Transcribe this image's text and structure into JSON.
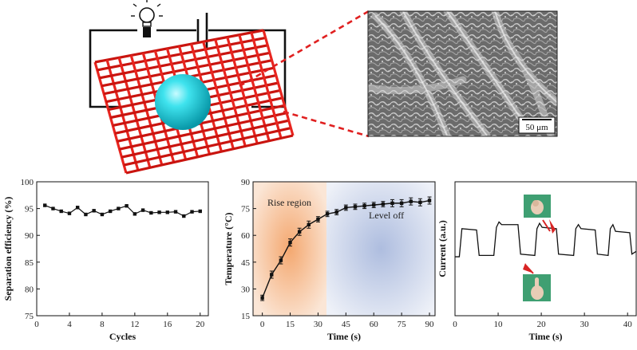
{
  "schematic": {
    "sem_label": "SEM micrograph of fibrous mesh surface",
    "scale_bar": "50 μm",
    "mesh_label": "red woven mesh with cyan droplet in circuit with bulb and battery"
  },
  "chart_data": [
    {
      "type": "line",
      "xlabel": "Cycles",
      "ylabel": "Separation efficiency (%)",
      "xlim": [
        0,
        21
      ],
      "ylim": [
        75,
        100
      ],
      "xticks": [
        "0",
        "4",
        "8",
        "12",
        "16",
        "20"
      ],
      "yticks": [
        "75",
        "80",
        "85",
        "90",
        "95",
        "100"
      ],
      "series": [
        {
          "name": "efficiency",
          "x": [
            1,
            2,
            3,
            4,
            5,
            6,
            7,
            8,
            9,
            10,
            11,
            12,
            13,
            14,
            15,
            16,
            17,
            18,
            19,
            20
          ],
          "y": [
            95.6,
            95.0,
            94.5,
            94.1,
            95.2,
            93.9,
            94.6,
            93.9,
            94.5,
            95.0,
            95.5,
            94.0,
            94.7,
            94.2,
            94.3,
            94.3,
            94.4,
            93.6,
            94.4,
            94.5
          ]
        }
      ]
    },
    {
      "type": "line",
      "xlabel": "Time (s)",
      "ylabel": "Temperature (°C)",
      "xlim": [
        -5,
        93
      ],
      "ylim": [
        15,
        90
      ],
      "xticks": [
        "0",
        "15",
        "30",
        "45",
        "60",
        "75",
        "90"
      ],
      "yticks": [
        "15",
        "30",
        "45",
        "60",
        "75",
        "90"
      ],
      "regions": [
        {
          "label": "Rise region",
          "x": [
            -5,
            35
          ],
          "color": "#f3b48a"
        },
        {
          "label": "Level off",
          "x": [
            35,
            93
          ],
          "color": "#b9c6e2"
        }
      ],
      "series": [
        {
          "name": "temperature",
          "x": [
            0,
            5,
            10,
            15,
            20,
            25,
            30,
            35,
            40,
            45,
            50,
            55,
            60,
            65,
            70,
            75,
            80,
            85,
            90
          ],
          "y": [
            25,
            38,
            46,
            56,
            62,
            66,
            69,
            72,
            73,
            75.5,
            76,
            76.5,
            77,
            77.5,
            78,
            78,
            79,
            78.5,
            79.5
          ],
          "err": [
            1.5,
            2,
            2,
            2,
            2,
            2,
            1.5,
            1.5,
            1.5,
            1.5,
            1.5,
            1.5,
            1.5,
            1.5,
            2,
            2,
            2,
            2,
            2
          ]
        }
      ]
    },
    {
      "type": "line",
      "xlabel": "Time (s)",
      "ylabel": "Current (a.u.)",
      "xlim": [
        0,
        42
      ],
      "ylim": [
        0,
        10
      ],
      "xticks": [
        "0",
        "10",
        "20",
        "30",
        "40"
      ],
      "yticks": [],
      "annotations": [
        "hand gesture: closed fist (high current)",
        "hand gesture: raised finger (low current)"
      ],
      "series": [
        {
          "name": "current",
          "x": [
            0,
            1,
            1.6,
            5,
            5.6,
            9,
            9.6,
            10.2,
            10.8,
            14.6,
            15.2,
            18.5,
            19.0,
            19.6,
            20.2,
            23.5,
            24.0,
            27.5,
            28.0,
            28.6,
            29.2,
            32.5,
            33.0,
            35.5,
            36.0,
            36.6,
            37.2,
            40.5,
            41.0,
            42
          ],
          "y": [
            4.4,
            4.4,
            6.5,
            6.4,
            4.5,
            4.5,
            6.6,
            7.0,
            6.8,
            6.8,
            4.6,
            4.5,
            6.5,
            6.9,
            6.6,
            6.5,
            4.6,
            4.5,
            6.5,
            6.8,
            6.5,
            6.4,
            4.6,
            4.5,
            6.5,
            6.8,
            6.3,
            6.2,
            4.6,
            4.8
          ]
        }
      ]
    }
  ]
}
